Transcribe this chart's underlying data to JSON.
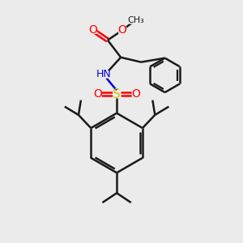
{
  "bg_color": "#ebebeb",
  "bond_color": "#1a1a1a",
  "bond_width": 1.8,
  "O_color": "#ff0000",
  "N_color": "#0000dd",
  "S_color": "#cccc00",
  "H_color": "#888888",
  "figsize": [
    3.0,
    3.0
  ],
  "dpi": 100,
  "xlim": [
    0,
    10
  ],
  "ylim": [
    0,
    10
  ]
}
